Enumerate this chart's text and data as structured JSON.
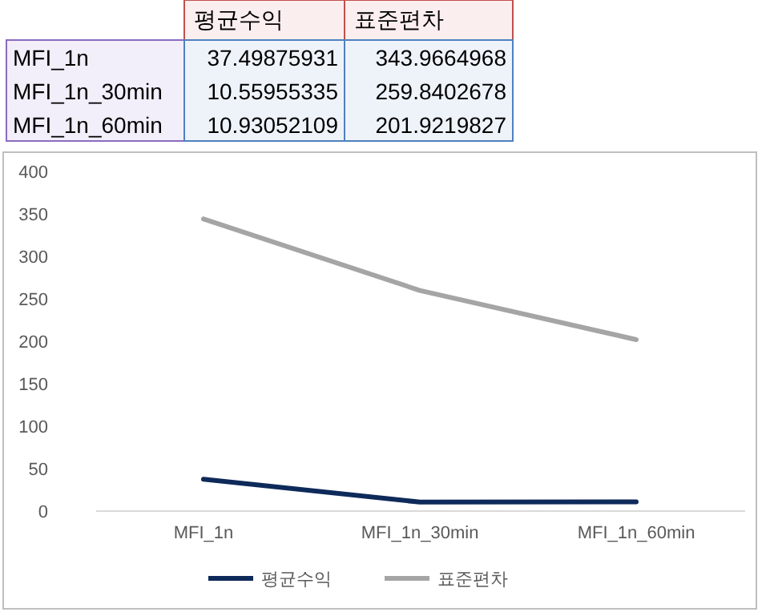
{
  "chart_data": {
    "type": "line",
    "categories": [
      "MFI_1n",
      "MFI_1n_30min",
      "MFI_1n_60min"
    ],
    "series": [
      {
        "name": "평균수익",
        "color": "#0e2a5a",
        "values": [
          37.49875931,
          10.55955335,
          10.93052109
        ]
      },
      {
        "name": "표준편차",
        "color": "#a5a5a5",
        "values": [
          343.9664968,
          259.8402678,
          201.9219827
        ]
      }
    ],
    "annotations": [
      "37.49875931",
      "343.9664968",
      "10.55955335",
      "259.8402678",
      "10.93052109",
      "201.9219827"
    ],
    "ylim": [
      0,
      400
    ],
    "yticks": [
      0,
      50,
      100,
      150,
      200,
      250,
      300,
      350,
      400
    ],
    "grid": false,
    "legend": "bottom",
    "marker": "none",
    "line_style": "solid"
  }
}
